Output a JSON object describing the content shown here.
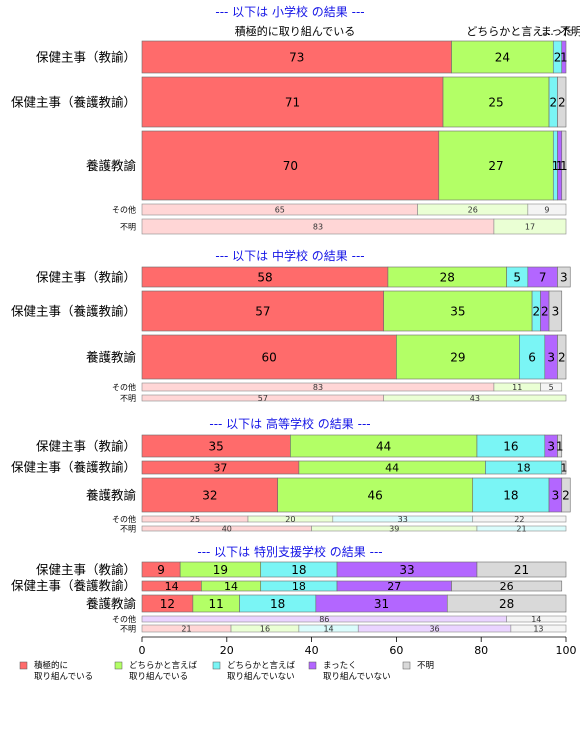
{
  "chart_data": {
    "type": "bar",
    "orientation": "horizontal",
    "stacked": "percent",
    "xlim": [
      0,
      100
    ],
    "xticks": [
      "0",
      "20",
      "40",
      "60",
      "80",
      "100"
    ],
    "legend_position": "bottom",
    "column_header_labels": [
      "積極的に取り組んでいる",
      "どちらかと言え...",
      "まった",
      "不明"
    ],
    "series": [
      {
        "name": "積極的に\n取り組んでいる",
        "color": "#ff6b6b"
      },
      {
        "name": "どちらかと言えば\n取り組んでいる",
        "color": "#b3ff66"
      },
      {
        "name": "どちらかと言えば\n取り組んでいない",
        "color": "#7af5f5"
      },
      {
        "name": "まったく\n取り組んでいない",
        "color": "#b366ff"
      },
      {
        "name": "不明",
        "color": "#d9d9d9"
      }
    ],
    "panels": [
      {
        "title": "--- 以下は 小学校 の結果 ---",
        "rows": [
          {
            "label": "保健主事（教諭）",
            "major": true,
            "values": [
              73,
              24,
              2,
              1,
              0
            ]
          },
          {
            "label": "保健主事（養護教諭）",
            "major": true,
            "values": [
              71,
              25,
              2,
              0,
              2
            ]
          },
          {
            "label": "養護教諭",
            "major": true,
            "values": [
              70,
              27,
              1,
              1,
              1
            ]
          },
          {
            "label": "その他",
            "major": false,
            "values": [
              65,
              26,
              0,
              0,
              9
            ]
          },
          {
            "label": "不明",
            "major": false,
            "values": [
              83,
              17,
              0,
              0,
              0
            ]
          }
        ]
      },
      {
        "title": "--- 以下は 中学校 の結果 ---",
        "rows": [
          {
            "label": "保健主事（教諭）",
            "major": true,
            "values": [
              58,
              28,
              5,
              7,
              3
            ]
          },
          {
            "label": "保健主事（養護教諭）",
            "major": true,
            "values": [
              57,
              35,
              2,
              2,
              3
            ]
          },
          {
            "label": "養護教諭",
            "major": true,
            "values": [
              60,
              29,
              6,
              3,
              2
            ]
          },
          {
            "label": "その他",
            "major": false,
            "values": [
              83,
              11,
              0,
              0,
              5
            ]
          },
          {
            "label": "不明",
            "major": false,
            "values": [
              57,
              43,
              0,
              0,
              0
            ]
          }
        ]
      },
      {
        "title": "--- 以下は 高等学校 の結果 ---",
        "rows": [
          {
            "label": "保健主事（教諭）",
            "major": true,
            "values": [
              35,
              44,
              16,
              3,
              1
            ]
          },
          {
            "label": "保健主事（養護教諭）",
            "major": true,
            "values": [
              37,
              44,
              18,
              0,
              1
            ]
          },
          {
            "label": "養護教諭",
            "major": true,
            "values": [
              32,
              46,
              18,
              3,
              2
            ]
          },
          {
            "label": "その他",
            "major": false,
            "values": [
              25,
              20,
              33,
              0,
              22
            ]
          },
          {
            "label": "不明",
            "major": false,
            "values": [
              40,
              39,
              21,
              0,
              0
            ]
          }
        ]
      },
      {
        "title": "--- 以下は 特別支援学校 の結果 ---",
        "rows": [
          {
            "label": "保健主事（教諭）",
            "major": true,
            "values": [
              9,
              19,
              18,
              33,
              21
            ]
          },
          {
            "label": "保健主事（養護教諭）",
            "major": true,
            "values": [
              14,
              14,
              18,
              27,
              26
            ]
          },
          {
            "label": "養護教諭",
            "major": true,
            "values": [
              12,
              11,
              18,
              31,
              28
            ]
          },
          {
            "label": "その他",
            "major": false,
            "values": [
              0,
              0,
              0,
              86,
              14
            ]
          },
          {
            "label": "不明",
            "major": false,
            "values": [
              21,
              16,
              14,
              36,
              13
            ]
          }
        ]
      }
    ]
  }
}
